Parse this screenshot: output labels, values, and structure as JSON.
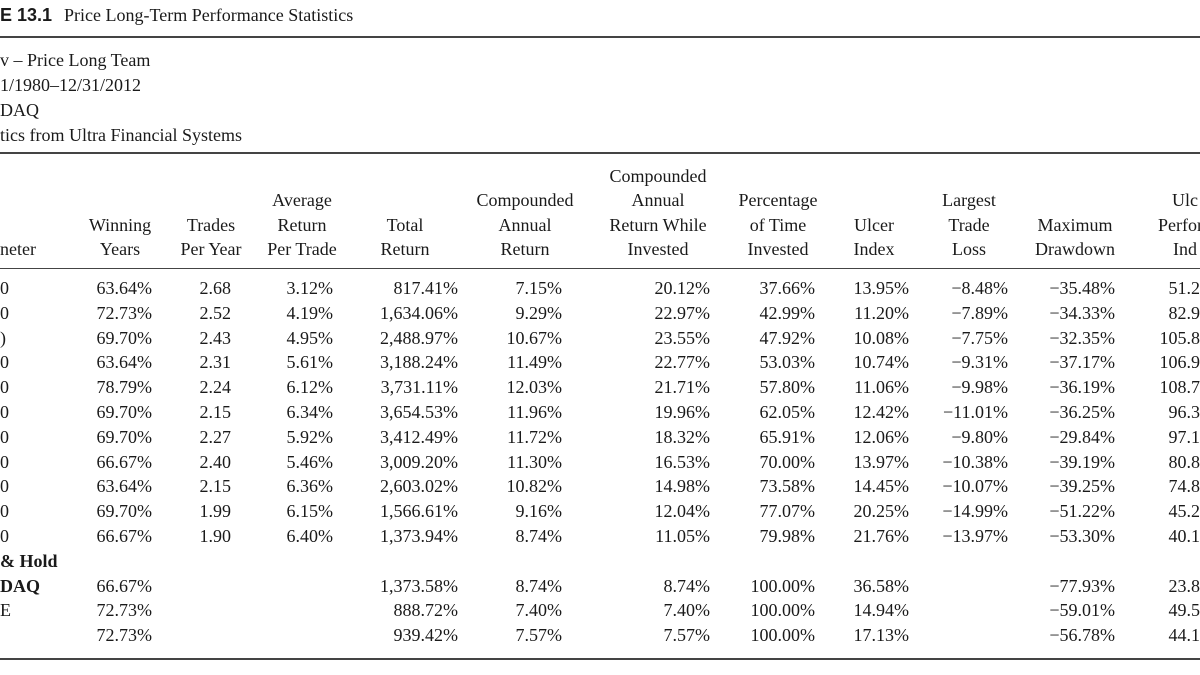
{
  "caption": {
    "label": "E 13.1",
    "title": "Price Long-Term Performance Statistics"
  },
  "meta": [
    "v – Price Long Team",
    "1/1980–12/31/2012",
    "DAQ",
    "tics from Ultra Financial Systems"
  ],
  "columns": [
    {
      "id": "param",
      "lines": [
        "",
        "",
        "neter"
      ]
    },
    {
      "id": "winning",
      "lines": [
        "Winning",
        "Years"
      ]
    },
    {
      "id": "trades",
      "lines": [
        "Trades",
        "Per Year"
      ]
    },
    {
      "id": "avgret",
      "lines": [
        "Average",
        "Return",
        "Per Trade"
      ]
    },
    {
      "id": "total",
      "lines": [
        "Total",
        "Return"
      ]
    },
    {
      "id": "car",
      "lines": [
        "Compounded",
        "Annual",
        "Return"
      ]
    },
    {
      "id": "carwi",
      "lines": [
        "Compounded",
        "Annual",
        "Return While",
        "Invested"
      ]
    },
    {
      "id": "pct",
      "lines": [
        "Percentage",
        "of Time",
        "Invested"
      ]
    },
    {
      "id": "ulcer",
      "lines": [
        "Ulcer",
        "Index"
      ]
    },
    {
      "id": "largest",
      "lines": [
        "Largest",
        "Trade",
        "Loss"
      ]
    },
    {
      "id": "maxdd",
      "lines": [
        "Maximum",
        "Drawdown"
      ]
    },
    {
      "id": "upi",
      "lines": [
        "Ulc",
        "Perforn",
        "Ind"
      ]
    }
  ],
  "rows": [
    {
      "label": "0",
      "cells": [
        "63.64%",
        "2.68",
        "3.12%",
        "817.41%",
        "7.15%",
        "20.12%",
        "37.66%",
        "13.95%",
        "−8.48%",
        "−35.48%",
        "51.2"
      ]
    },
    {
      "label": "0",
      "cells": [
        "72.73%",
        "2.52",
        "4.19%",
        "1,634.06%",
        "9.29%",
        "22.97%",
        "42.99%",
        "11.20%",
        "−7.89%",
        "−34.33%",
        "82.9"
      ]
    },
    {
      "label": ")",
      "cells": [
        "69.70%",
        "2.43",
        "4.95%",
        "2,488.97%",
        "10.67%",
        "23.55%",
        "47.92%",
        "10.08%",
        "−7.75%",
        "−32.35%",
        "105.8"
      ]
    },
    {
      "label": "0",
      "cells": [
        "63.64%",
        "2.31",
        "5.61%",
        "3,188.24%",
        "11.49%",
        "22.77%",
        "53.03%",
        "10.74%",
        "−9.31%",
        "−37.17%",
        "106.9"
      ]
    },
    {
      "label": "0",
      "cells": [
        "78.79%",
        "2.24",
        "6.12%",
        "3,731.11%",
        "12.03%",
        "21.71%",
        "57.80%",
        "11.06%",
        "−9.98%",
        "−36.19%",
        "108.7"
      ]
    },
    {
      "label": "0",
      "cells": [
        "69.70%",
        "2.15",
        "6.34%",
        "3,654.53%",
        "11.96%",
        "19.96%",
        "62.05%",
        "12.42%",
        "−11.01%",
        "−36.25%",
        "96.3"
      ]
    },
    {
      "label": "0",
      "cells": [
        "69.70%",
        "2.27",
        "5.92%",
        "3,412.49%",
        "11.72%",
        "18.32%",
        "65.91%",
        "12.06%",
        "−9.80%",
        "−29.84%",
        "97.1"
      ]
    },
    {
      "label": "0",
      "cells": [
        "66.67%",
        "2.40",
        "5.46%",
        "3,009.20%",
        "11.30%",
        "16.53%",
        "70.00%",
        "13.97%",
        "−10.38%",
        "−39.19%",
        "80.8"
      ]
    },
    {
      "label": "0",
      "cells": [
        "63.64%",
        "2.15",
        "6.36%",
        "2,603.02%",
        "10.82%",
        "14.98%",
        "73.58%",
        "14.45%",
        "−10.07%",
        "−39.25%",
        "74.8"
      ]
    },
    {
      "label": "0",
      "cells": [
        "69.70%",
        "1.99",
        "6.15%",
        "1,566.61%",
        "9.16%",
        "12.04%",
        "77.07%",
        "20.25%",
        "−14.99%",
        "−51.22%",
        "45.2"
      ]
    },
    {
      "label": "0",
      "cells": [
        "66.67%",
        "1.90",
        "6.40%",
        "1,373.94%",
        "8.74%",
        "11.05%",
        "79.98%",
        "21.76%",
        "−13.97%",
        "−53.30%",
        "40.1"
      ]
    },
    {
      "label": "& Hold",
      "section": true,
      "cells": [
        "",
        "",
        "",
        "",
        "",
        "",
        "",
        "",
        "",
        "",
        ""
      ]
    },
    {
      "label": "DAQ",
      "section": true,
      "cells": [
        "66.67%",
        "",
        "",
        "1,373.58%",
        "8.74%",
        "8.74%",
        "100.00%",
        "36.58%",
        "",
        "−77.93%",
        "23.8"
      ]
    },
    {
      "label": "E",
      "cells": [
        "72.73%",
        "",
        "",
        "888.72%",
        "7.40%",
        "7.40%",
        "100.00%",
        "14.94%",
        "",
        "−59.01%",
        "49.5"
      ]
    },
    {
      "label": "",
      "cells": [
        "72.73%",
        "",
        "",
        "939.42%",
        "7.57%",
        "7.57%",
        "100.00%",
        "17.13%",
        "",
        "−56.78%",
        "44.1"
      ]
    }
  ]
}
